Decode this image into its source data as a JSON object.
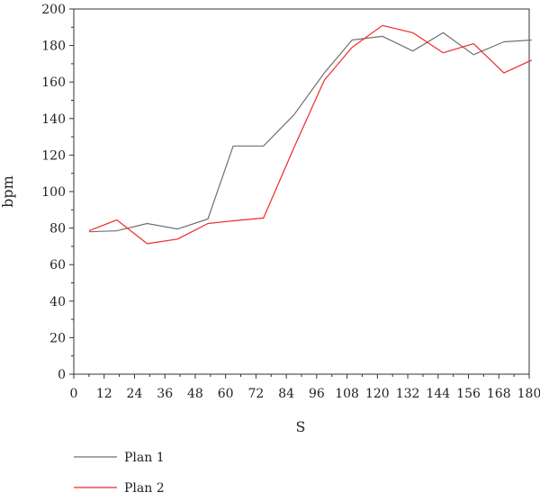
{
  "chart_data": {
    "type": "line",
    "xlabel": "S",
    "ylabel": "bpm",
    "xlim": [
      0,
      180
    ],
    "ylim": [
      0,
      200
    ],
    "xticks": [
      0,
      12,
      24,
      36,
      48,
      60,
      72,
      84,
      96,
      108,
      120,
      132,
      144,
      156,
      168,
      180
    ],
    "yticks": [
      0,
      20,
      40,
      60,
      80,
      100,
      120,
      140,
      160,
      180,
      200
    ],
    "grid": false,
    "legend_position": "bottom-left",
    "series": [
      {
        "name": "Plan 1",
        "color": "#707070",
        "x": [
          6,
          17,
          29,
          41,
          53,
          63,
          75,
          87,
          99,
          110,
          122,
          134,
          146,
          158,
          170,
          181
        ],
        "y": [
          78,
          78.5,
          82.5,
          79.5,
          85,
          125,
          125,
          142,
          165,
          183,
          185,
          177,
          187,
          175,
          182,
          183
        ]
      },
      {
        "name": "Plan 2",
        "color": "#ee2a2a",
        "x": [
          6,
          17,
          29,
          41,
          53,
          63,
          75,
          87,
          99,
          110,
          122,
          134,
          146,
          158,
          170,
          181
        ],
        "y": [
          78.5,
          84.5,
          71.5,
          74,
          82.5,
          84,
          85.5,
          124,
          161,
          179,
          191,
          187,
          176,
          181,
          165,
          172
        ]
      }
    ]
  }
}
